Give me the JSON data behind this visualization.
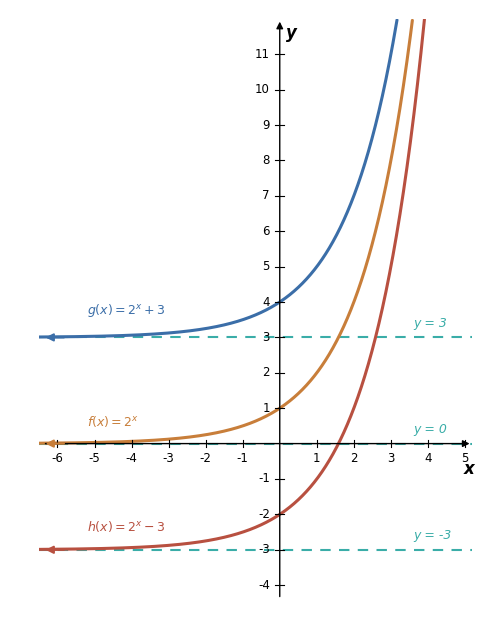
{
  "xlim": [
    -6.5,
    5.2
  ],
  "ylim": [
    -4.5,
    12.0
  ],
  "xticks": [
    -6,
    -5,
    -4,
    -3,
    -2,
    -1,
    1,
    2,
    3,
    4,
    5
  ],
  "yticks": [
    -4,
    -3,
    -2,
    -1,
    1,
    2,
    3,
    4,
    5,
    6,
    7,
    8,
    9,
    10,
    11
  ],
  "xlabel": "x",
  "ylabel": "y",
  "color_g": "#3B6EA8",
  "color_f": "#C87E3A",
  "color_h": "#B85040",
  "color_asymptote": "#3AADA8",
  "asymptotes": [
    3,
    0,
    -3
  ],
  "asymptote_labels": [
    "y = 3",
    "y = 0",
    "y = -3"
  ],
  "background_color": "#ffffff"
}
